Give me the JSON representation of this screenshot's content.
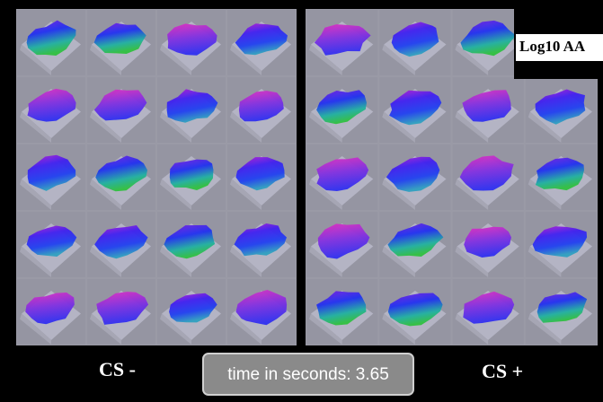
{
  "panels": [
    {
      "label": "CS -"
    },
    {
      "label": "CS +"
    }
  ],
  "colorbar_label": "Log10 AA",
  "time_display": "time in seconds: 3.65"
}
